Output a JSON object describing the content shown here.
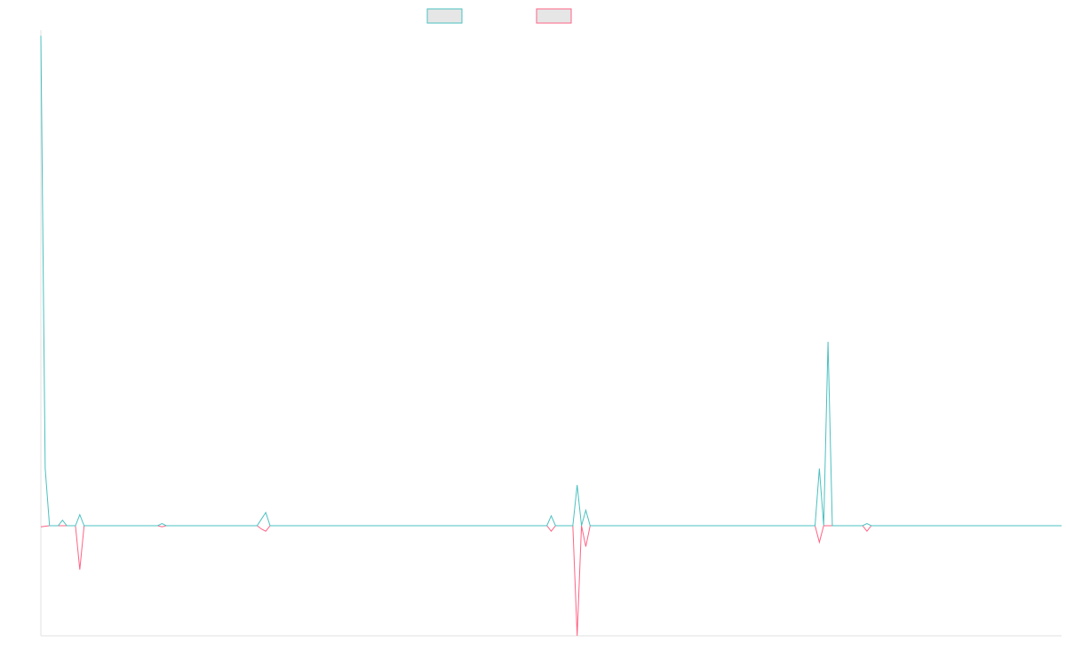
{
  "chart_data": {
    "type": "line",
    "xlim": [
      0,
      236
    ],
    "ylim": [
      -1,
      4.5
    ],
    "series": [
      {
        "color": "#4bc0c0",
        "x": [
          0,
          1,
          2,
          4,
          5,
          6,
          8,
          9,
          10,
          27,
          28,
          29,
          50,
          51,
          52,
          53,
          117,
          118,
          119,
          123,
          124,
          125,
          126,
          127,
          179,
          180,
          181,
          182,
          183,
          190,
          191,
          192,
          236
        ],
        "values": [
          4.45,
          0.52,
          0,
          0,
          0.05,
          0,
          0,
          0.1,
          0,
          0,
          0.02,
          0,
          0,
          0.06,
          0.12,
          0,
          0,
          0.09,
          0,
          0,
          0.37,
          0,
          0.14,
          0,
          0,
          0.52,
          0,
          1.67,
          0,
          0,
          0.02,
          0,
          0
        ]
      },
      {
        "color": "#ff6384",
        "x": [
          0,
          2,
          8,
          9,
          10,
          27,
          28,
          29,
          50,
          51,
          52,
          53,
          117,
          118,
          119,
          123,
          124,
          125,
          126,
          127,
          179,
          180,
          181,
          190,
          191,
          192,
          236
        ],
        "values": [
          -0.01,
          0,
          0,
          -0.4,
          0,
          0,
          -0.01,
          0,
          0,
          -0.03,
          -0.05,
          0,
          0,
          -0.05,
          0,
          0,
          -1,
          0,
          -0.19,
          0,
          0,
          -0.15,
          0,
          0,
          -0.05,
          0,
          0
        ]
      }
    ]
  }
}
